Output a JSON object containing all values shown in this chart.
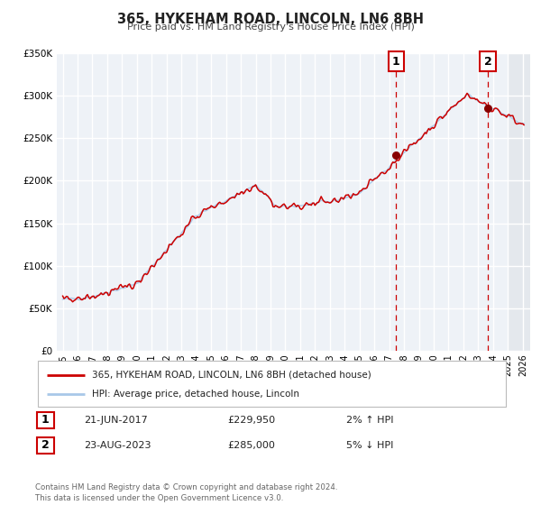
{
  "title": "365, HYKEHAM ROAD, LINCOLN, LN6 8BH",
  "subtitle": "Price paid vs. HM Land Registry's House Price Index (HPI)",
  "ylim": [
    0,
    350000
  ],
  "yticks": [
    0,
    50000,
    100000,
    150000,
    200000,
    250000,
    300000,
    350000
  ],
  "ytick_labels": [
    "£0",
    "£50K",
    "£100K",
    "£150K",
    "£200K",
    "£250K",
    "£300K",
    "£350K"
  ],
  "xlim_start": 1994.6,
  "xlim_end": 2026.5,
  "xticks": [
    1995,
    1996,
    1997,
    1998,
    1999,
    2000,
    2001,
    2002,
    2003,
    2004,
    2005,
    2006,
    2007,
    2008,
    2009,
    2010,
    2011,
    2012,
    2013,
    2014,
    2015,
    2016,
    2017,
    2018,
    2019,
    2020,
    2021,
    2022,
    2023,
    2024,
    2025,
    2026
  ],
  "property_color": "#cc0000",
  "hpi_color": "#a8c8e8",
  "marker1_date": 2017.47,
  "marker1_value": 229950,
  "marker2_date": 2023.645,
  "marker2_value": 285000,
  "legend_property": "365, HYKEHAM ROAD, LINCOLN, LN6 8BH (detached house)",
  "legend_hpi": "HPI: Average price, detached house, Lincoln",
  "table_rows": [
    {
      "label": "1",
      "date": "21-JUN-2017",
      "price": "£229,950",
      "pct": "2% ↑ HPI"
    },
    {
      "label": "2",
      "date": "23-AUG-2023",
      "price": "£285,000",
      "pct": "5% ↓ HPI"
    }
  ],
  "footer": "Contains HM Land Registry data © Crown copyright and database right 2024.\nThis data is licensed under the Open Government Licence v3.0.",
  "plot_bg_color": "#eef2f7",
  "future_bg_color": "#e4e8ed",
  "grid_color": "#ffffff",
  "future_start": 2025.0
}
